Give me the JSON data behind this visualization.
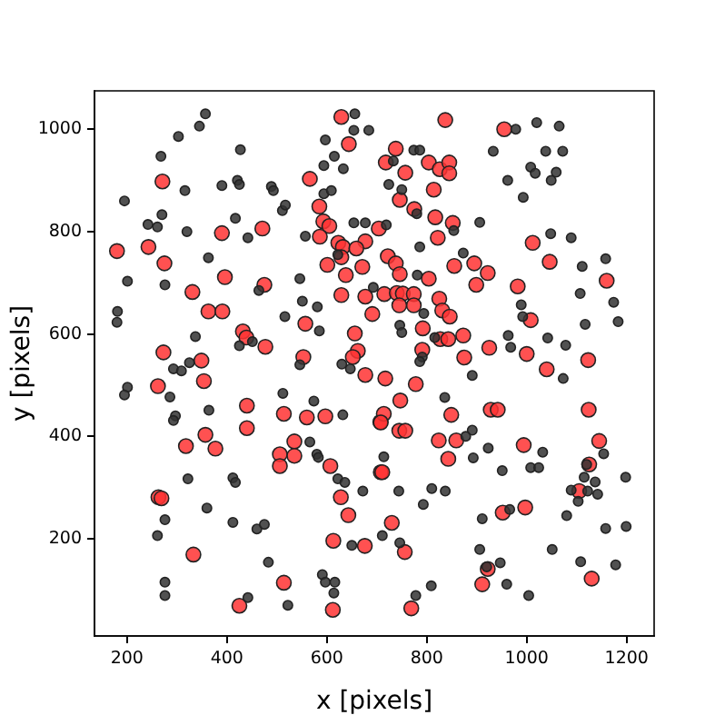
{
  "chart_data": {
    "type": "scatter",
    "xlabel": "x [pixels]",
    "ylabel": "y [pixels]",
    "xlim": [
      135,
      1255
    ],
    "ylim": [
      10,
      1075
    ],
    "xticks": [
      200,
      400,
      600,
      800,
      1000,
      1200
    ],
    "yticks": [
      200,
      400,
      600,
      800,
      1000
    ],
    "grid": false,
    "legend": false,
    "marker": "circle",
    "series": [
      {
        "color": "#333333",
        "x": [
          357,
          345,
          303,
          656,
          654,
          684,
          597,
          268,
          427,
          615,
          594,
          633,
          316,
          390,
          421,
          425,
          489,
          493,
          594,
          609,
          195,
          270,
          242,
          261,
          417,
          320,
          442,
          511,
          517,
          557,
          654,
          677,
          622,
          363,
          201,
          276,
          464,
          546,
          693,
          551,
          581,
          181,
          180,
          516,
          585,
          337,
          425,
          451,
          546,
          325,
          647,
          630,
          293,
          309,
          1020,
          1065,
          978,
          933,
          1038,
          1072,
          733,
          774,
          786,
          1008,
          1017,
          1059,
          962,
          1049,
          724,
          750,
          993,
          780,
          906,
          719,
          854,
          1048,
          1089,
          786,
          873,
          1158,
          1111,
          781,
          1107,
          989,
          1174,
          992,
          1183,
          1117,
          746,
          750,
          794,
          816,
          963,
          1042,
          968,
          1078,
          791,
          786,
          201,
          195,
          286,
          297,
          293,
          364,
          512,
          574,
          632,
          566,
          580,
          583,
          322,
          412,
          417,
          622,
          636,
          672,
          360,
          276,
          261,
          412,
          460,
          475,
          650,
          483,
          591,
          597,
          616,
          614,
          276,
          276,
          522,
          442,
          891,
          1073,
          836,
          891,
          878,
          923,
          1032,
          714,
          893,
          951,
          1008,
          1024,
          1154,
          1120,
          1115,
          1137,
          1089,
          1122,
          1142,
          1103,
          1198,
          810,
          837,
          744,
          793,
          966,
          1080,
          911,
          1158,
          1199,
          711,
          746,
          906,
          1051,
          947,
          920,
          1108,
          1178,
          960,
          809,
          778,
          1004
        ],
        "values": [
          1030,
          1006,
          986,
          1030,
          998,
          998,
          979,
          947,
          960,
          947,
          929,
          923,
          880,
          890,
          900,
          892,
          888,
          880,
          874,
          880,
          860,
          833,
          814,
          809,
          826,
          800,
          788,
          841,
          852,
          791,
          817,
          817,
          755,
          749,
          703,
          696,
          685,
          708,
          691,
          664,
          653,
          644,
          623,
          634,
          606,
          595,
          577,
          585,
          540,
          544,
          532,
          541,
          532,
          528,
          1013,
          1006,
          1000,
          957,
          957,
          957,
          938,
          959,
          959,
          926,
          914,
          916,
          900,
          900,
          892,
          882,
          867,
          835,
          818,
          813,
          802,
          796,
          788,
          770,
          758,
          747,
          732,
          715,
          679,
          657,
          662,
          634,
          624,
          619,
          617,
          603,
          640,
          593,
          597,
          592,
          574,
          578,
          555,
          546,
          496,
          481,
          477,
          440,
          431,
          451,
          484,
          469,
          442,
          389,
          365,
          359,
          317,
          319,
          310,
          317,
          310,
          293,
          260,
          237,
          206,
          232,
          219,
          228,
          187,
          154,
          130,
          115,
          115,
          94,
          115,
          89,
          70,
          85,
          519,
          513,
          476,
          412,
          400,
          377,
          369,
          360,
          358,
          333,
          339,
          339,
          366,
          345,
          320,
          311,
          295,
          293,
          287,
          273,
          320,
          298,
          293,
          293,
          267,
          257,
          245,
          239,
          220,
          224,
          206,
          192,
          179,
          179,
          153,
          145,
          155,
          149,
          111,
          108,
          89,
          89
        ]
      },
      {
        "color": "#ff3333",
        "x": [
          629,
          644,
          271,
          566,
          585,
          593,
          605,
          471,
          390,
          586,
          623,
          632,
          677,
          659,
          704,
          180,
          243,
          275,
          601,
          629,
          671,
          638,
          396,
          475,
          331,
          629,
          677,
          363,
          391,
          691,
          557,
          432,
          439,
          477,
          273,
          349,
          553,
          662,
          652,
          656,
          837,
          955,
          718,
          738,
          757,
          804,
          826,
          845,
          845,
          814,
          746,
          775,
          817,
          852,
          822,
          722,
          738,
          746,
          1012,
          1046,
          855,
          895,
          922,
          899,
          804,
          982,
          715,
          740,
          752,
          774,
          825,
          774,
          745,
          1160,
          831,
          846,
          792,
          827,
          843,
          873,
          925,
          1000,
          1008,
          1123,
          1040,
          875,
          791,
          262,
          354,
          440,
          440,
          514,
          560,
          597,
          707,
          318,
          377,
          506,
          535,
          535,
          506,
          357,
          607,
          263,
          269,
          628,
          643,
          613,
          676,
          514,
          333,
          425,
          612,
          708,
          677,
          778,
          717,
          747,
          714,
          708,
          745,
          757,
          849,
          824,
          859,
          843,
          928,
          942,
          994,
          1145,
          711,
          1125,
          1124,
          1105,
          997,
          952,
          730,
          756,
          922,
          911,
          1130,
          769
        ],
        "values": [
          1024,
          971,
          898,
          903,
          849,
          820,
          811,
          806,
          797,
          790,
          778,
          770,
          781,
          767,
          806,
          762,
          770,
          738,
          735,
          750,
          731,
          715,
          711,
          696,
          682,
          676,
          673,
          644,
          644,
          639,
          620,
          605,
          593,
          575,
          564,
          548,
          555,
          567,
          555,
          601,
          1018,
          1000,
          935,
          962,
          915,
          935,
          922,
          935,
          914,
          882,
          862,
          844,
          828,
          817,
          788,
          752,
          738,
          717,
          778,
          741,
          733,
          738,
          719,
          696,
          708,
          693,
          678,
          680,
          679,
          678,
          669,
          656,
          656,
          704,
          646,
          634,
          611,
          590,
          590,
          597,
          573,
          561,
          627,
          549,
          531,
          554,
          569,
          498,
          508,
          460,
          416,
          444,
          437,
          439,
          428,
          381,
          376,
          365,
          390,
          362,
          342,
          403,
          342,
          281,
          279,
          281,
          246,
          196,
          186,
          114,
          169,
          69,
          61,
          330,
          520,
          502,
          513,
          470,
          444,
          427,
          411,
          411,
          442,
          392,
          392,
          356,
          452,
          452,
          383,
          391,
          330,
          345,
          452,
          293,
          261,
          251,
          231,
          174,
          141,
          111,
          122,
          64
        ]
      }
    ]
  }
}
